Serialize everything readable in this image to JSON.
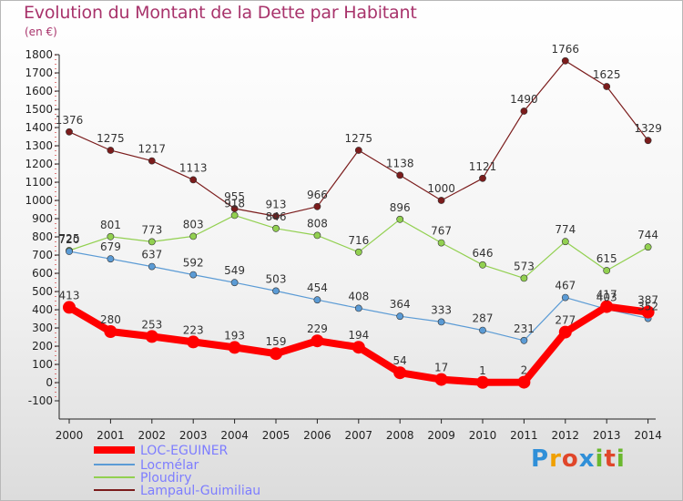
{
  "chart_data": {
    "type": "line",
    "title": "Evolution du Montant de la Dette par Habitant",
    "subtitle": "(en €)",
    "x": [
      "2000",
      "2001",
      "2002",
      "2003",
      "2004",
      "2005",
      "2006",
      "2007",
      "2008",
      "2009",
      "2010",
      "2011",
      "2012",
      "2013",
      "2014"
    ],
    "ylim": [
      -100,
      1800
    ],
    "yticks": [
      -100,
      0,
      100,
      200,
      300,
      400,
      500,
      600,
      700,
      800,
      900,
      1000,
      1100,
      1200,
      1300,
      1400,
      1500,
      1600,
      1700,
      1800
    ],
    "grid": false,
    "legend_position": "bottom-left",
    "series": [
      {
        "name": "LOC-EGUINER",
        "color": "#ff0000",
        "values": [
          413,
          280,
          253,
          223,
          193,
          159,
          229,
          194,
          54,
          17,
          1,
          2,
          277,
          417,
          387
        ]
      },
      {
        "name": "Locmélar",
        "color": "#5b9bd5",
        "values": [
          720,
          679,
          637,
          592,
          549,
          503,
          454,
          408,
          364,
          333,
          287,
          231,
          467,
          403,
          352
        ]
      },
      {
        "name": "Ploudiry",
        "color": "#92d050",
        "values": [
          725,
          801,
          773,
          803,
          918,
          846,
          808,
          716,
          896,
          767,
          646,
          573,
          774,
          615,
          744
        ]
      },
      {
        "name": "Lampaul-Guimiliau",
        "color": "#7b1c1c",
        "values": [
          1376,
          1275,
          1217,
          1113,
          955,
          913,
          966,
          1275,
          1138,
          1000,
          1121,
          1490,
          1766,
          1625,
          1329
        ]
      }
    ]
  },
  "logo": {
    "p": "P",
    "r": "r",
    "o": "o",
    "x": "x",
    "i": "i",
    "t": "t",
    "i2": "i"
  }
}
